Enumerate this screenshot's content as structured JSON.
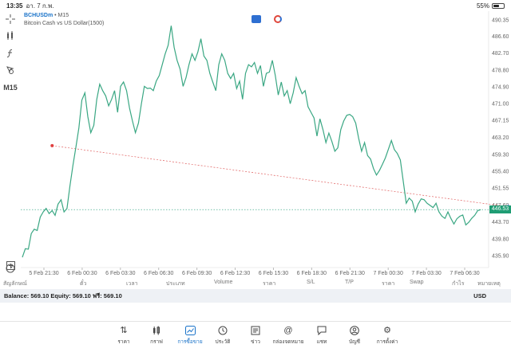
{
  "status": {
    "time": "13:35",
    "date": "อา. 7 ก.พ.",
    "battery": "55%",
    "battery_level": 0.55
  },
  "chart": {
    "symbol": "BCHUSDm",
    "timeframe": "M15",
    "description": "Bitcoin Cash vs US Dollar(1500)",
    "current_price": "446.53"
  },
  "toolbar": {
    "timeframe": "M15"
  },
  "price_axis": [
    "490.35",
    "486.60",
    "482.70",
    "478.80",
    "474.90",
    "471.00",
    "467.15",
    "463.20",
    "459.30",
    "455.40",
    "451.55",
    "447.60",
    "443.70",
    "439.80",
    "435.90"
  ],
  "time_axis": [
    "5 Feb 21:30",
    "6 Feb 00:30",
    "6 Feb 03:30",
    "6 Feb 06:30",
    "6 Feb 09:30",
    "6 Feb 12:30",
    "6 Feb 15:30",
    "6 Feb 18:30",
    "6 Feb 21:30",
    "7 Feb 00:30",
    "7 Feb 03:30",
    "7 Feb 06:30"
  ],
  "chart_data": {
    "type": "line",
    "series": [
      {
        "values": [
          435.5,
          437.5,
          437.4,
          441,
          442,
          441.7,
          444.8,
          446,
          446.8,
          445.6,
          446.3,
          445.2,
          447.8,
          448.8,
          446,
          446.8,
          452,
          456.8,
          461,
          465.4,
          471.8,
          473.5,
          468,
          464.3,
          466,
          472,
          475.5,
          474,
          472.8,
          470.5,
          472,
          474,
          469,
          475,
          476,
          474,
          470,
          467,
          464.3,
          466.5,
          471,
          475,
          474.5,
          474.6,
          474,
          476.2,
          477.5,
          480,
          482.5,
          484.5,
          489,
          484,
          481,
          479,
          475,
          477,
          480,
          482.5,
          481,
          483,
          486,
          482,
          481,
          478,
          476,
          474,
          480,
          482.5,
          481,
          478,
          476.8,
          478,
          474.5,
          476.2,
          472,
          478,
          480,
          479.5,
          480.5,
          478,
          479.8,
          475,
          478,
          478.3,
          481,
          477.5,
          473,
          476,
          472.8,
          474,
          471,
          473.5,
          477,
          475,
          473.3,
          474,
          470.3,
          469,
          467.7,
          463.5,
          467.5,
          465,
          462,
          464.2,
          462.3,
          460,
          460.8,
          465,
          467,
          468.3,
          468.5,
          468,
          466.5,
          463,
          460,
          462,
          459,
          458.2,
          456,
          454.5,
          455.6,
          457,
          458.5,
          460.5,
          462.5,
          460.4,
          459.5,
          458,
          453,
          448,
          449.2,
          448.5,
          446,
          447.8,
          449,
          448.8,
          448,
          447.5,
          447,
          448,
          446,
          445,
          444.5,
          446,
          444.5,
          443.2,
          444.4,
          445,
          445.3,
          443,
          443.6,
          444.5,
          445.2,
          446.3,
          446.5
        ],
        "style": "line"
      }
    ],
    "ylim": [
      433.5,
      492
    ],
    "y_ticks": [
      490.35,
      486.6,
      482.7,
      478.8,
      474.9,
      471.0,
      467.15,
      463.2,
      459.3,
      455.4,
      451.55,
      447.6,
      443.7,
      439.8,
      435.9
    ],
    "x_tick_labels": [
      "5 Feb 21:30",
      "6 Feb 00:30",
      "6 Feb 03:30",
      "6 Feb 06:30",
      "6 Feb 09:30",
      "6 Feb 12:30",
      "6 Feb 15:30",
      "6 Feb 18:30",
      "6 Feb 21:30",
      "7 Feb 00:30",
      "7 Feb 03:30",
      "7 Feb 06:30"
    ],
    "current_price": 446.53,
    "current_price_line": "dotted green",
    "trendline": {
      "from": {
        "x_index": 10,
        "y": 461.3
      },
      "to": {
        "x_index": 163,
        "y": 447.2
      },
      "style": "dotted red"
    },
    "grid": false
  },
  "table_header": {
    "symbol": "สัญลักษณ์",
    "ticket": "ตั๋ว",
    "time": "เวลา",
    "type": "ประเภท",
    "volume": "Volume",
    "price": "ราคา",
    "sl": "S/L",
    "tp": "T/P",
    "price2": "ราคา",
    "swap": "Swap",
    "profit": "กำไร",
    "comment": "หมายเหตุ"
  },
  "balance": {
    "text": "Balance: 569.10 Equity: 569.10 ฟรี: 569.10",
    "currency": "USD"
  },
  "nav": {
    "quotes": "ราคา",
    "chart": "กราฟ",
    "trade": "การซื้อขาย",
    "history": "ประวัติ",
    "news": "ข่าว",
    "mailbox": "กล่องจดหมาย",
    "chat": "แชท",
    "accounts": "บัญชี",
    "settings": "การตั้งค่า"
  },
  "colors": {
    "line": "#3aa783",
    "accent": "#1a73c9",
    "trendline": "#e06060",
    "price_tag": "#1f9d74"
  }
}
